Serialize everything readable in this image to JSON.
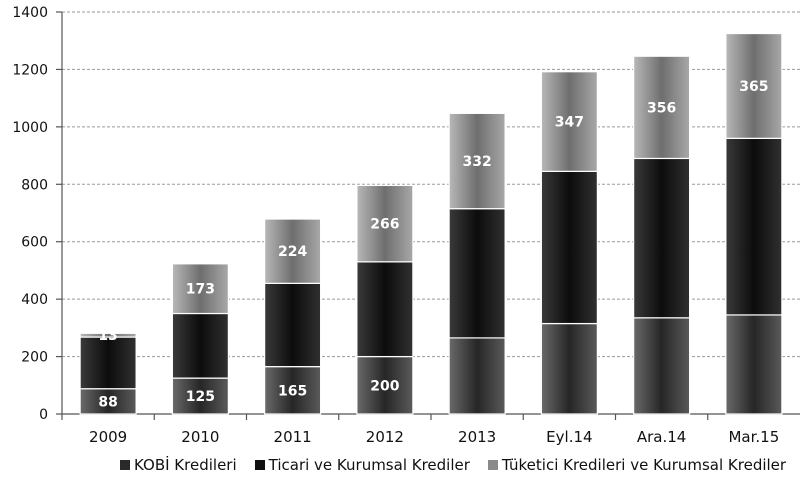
{
  "chart_data": {
    "type": "bar",
    "stacked": true,
    "title": "",
    "xlabel": "",
    "ylabel": "",
    "ylim": [
      0,
      1400
    ],
    "yticks": [
      0,
      200,
      400,
      600,
      800,
      1000,
      1200,
      1400
    ],
    "grid": true,
    "legend_position": "bottom",
    "categories": [
      "2009",
      "2010",
      "2011",
      "2012",
      "2013",
      "Eyl.14",
      "Ara.14",
      "Mar.15"
    ],
    "series": [
      {
        "name": "KOBİ Kredileri",
        "color": "#2a2a2a",
        "values": [
          88,
          125,
          165,
          200,
          265,
          315,
          335,
          345
        ],
        "labels": [
          "88",
          "125",
          "165",
          "200",
          "",
          "",
          "",
          ""
        ]
      },
      {
        "name": "Ticari ve Kurumsal Krediler",
        "color": "#101010",
        "values": [
          180,
          225,
          290,
          330,
          450,
          530,
          555,
          615
        ],
        "labels": [
          "",
          "",
          "",
          "",
          "",
          "",
          "",
          ""
        ]
      },
      {
        "name": "Tüketici Kredileri ve Kurumsal Krediler",
        "color": "#8a8a8a",
        "values": [
          13,
          173,
          224,
          266,
          332,
          347,
          356,
          365
        ],
        "labels": [
          "13",
          "173",
          "224",
          "266",
          "332",
          "347",
          "356",
          "365"
        ]
      }
    ]
  }
}
